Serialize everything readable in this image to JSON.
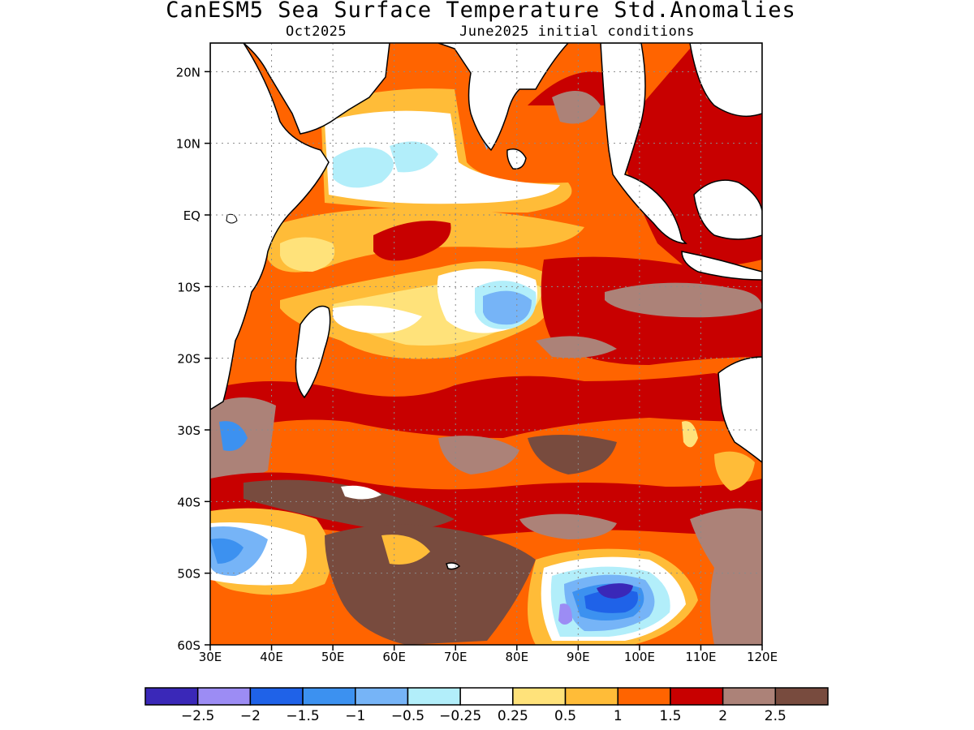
{
  "title": "CanESM5 Sea Surface Temperature Std.Anomalies",
  "subtitle_left": "Oct2025",
  "subtitle_right": "June2025 initial conditions",
  "map": {
    "lon_range": [
      30,
      120
    ],
    "lat_range": [
      -60,
      24
    ],
    "lat_ticks": [
      {
        "value": 20,
        "label": "20N"
      },
      {
        "value": 10,
        "label": "10N"
      },
      {
        "value": 0,
        "label": "EQ"
      },
      {
        "value": -10,
        "label": "10S"
      },
      {
        "value": -20,
        "label": "20S"
      },
      {
        "value": -30,
        "label": "30S"
      },
      {
        "value": -40,
        "label": "40S"
      },
      {
        "value": -50,
        "label": "50S"
      },
      {
        "value": -60,
        "label": "60S"
      }
    ],
    "lon_ticks": [
      {
        "value": 30,
        "label": "30E"
      },
      {
        "value": 40,
        "label": "40E"
      },
      {
        "value": 50,
        "label": "50E"
      },
      {
        "value": 60,
        "label": "60E"
      },
      {
        "value": 70,
        "label": "70E"
      },
      {
        "value": 80,
        "label": "80E"
      },
      {
        "value": 90,
        "label": "90E"
      },
      {
        "value": 100,
        "label": "100E"
      },
      {
        "value": 110,
        "label": "110E"
      },
      {
        "value": 120,
        "label": "120E"
      }
    ],
    "grid": true,
    "land_color": "#ffffff"
  },
  "colorbar": {
    "colors": [
      "#3a28b8",
      "#9c8cf4",
      "#1f62e8",
      "#3c91f0",
      "#76b4f7",
      "#b2eefa",
      "#ffffff",
      "#ffe27a",
      "#ffbc38",
      "#ff6400",
      "#c80000",
      "#ac8278",
      "#784b3e"
    ],
    "labels": [
      "−2.5",
      "−2",
      "−1.5",
      "−1",
      "−0.5",
      "−0.25",
      "0.25",
      "0.5",
      "1",
      "1.5",
      "2",
      "2.5"
    ]
  }
}
